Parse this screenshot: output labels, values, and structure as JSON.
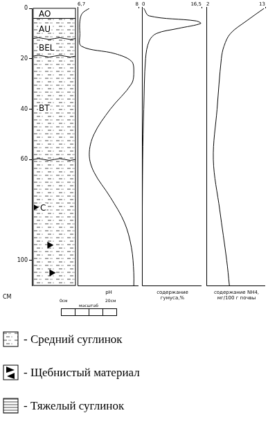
{
  "depth_axis": {
    "label": "CM",
    "ylim": [
      0,
      110
    ],
    "yticks": [
      0,
      20,
      40,
      60,
      100
    ]
  },
  "horizons": [
    {
      "label": "AO",
      "top": 0,
      "bottom": 4
    },
    {
      "label": "AU",
      "top": 4,
      "bottom": 12
    },
    {
      "label": "BEL",
      "top": 12,
      "bottom": 19
    },
    {
      "label": "BT",
      "top": 19,
      "bottom": 60
    },
    {
      "label": "C",
      "top": 60,
      "bottom": 110
    }
  ],
  "chart_data": [
    {
      "type": "line",
      "x_label": "pH",
      "xlim": [
        6.7,
        8
      ],
      "xticks": [
        {
          "value": 6.7,
          "label": "6,7"
        },
        8
      ],
      "x": [
        6.95,
        6.8,
        6.75,
        6.75,
        6.78,
        7.5,
        7.85,
        7.9,
        7.85,
        7.4,
        7.05,
        6.95,
        7.05,
        7.4,
        7.7,
        7.85,
        7.9,
        7.9
      ],
      "y": [
        0,
        2,
        5,
        10,
        15,
        18,
        21,
        25,
        30,
        40,
        50,
        58,
        65,
        75,
        85,
        95,
        105,
        110
      ],
      "color": "#000000",
      "grid": false,
      "tick_labels": "x"
    },
    {
      "type": "line",
      "x_label": "содержание гумуса,%",
      "xlim": [
        0,
        16.5
      ],
      "xticks": [
        0,
        {
          "value": 16.5,
          "label": "16,5"
        }
      ],
      "x": [
        0.5,
        2,
        15,
        16.3,
        10,
        4,
        2,
        1,
        0.5,
        0.2,
        0
      ],
      "y": [
        0,
        3,
        5,
        6,
        8,
        10,
        13,
        20,
        40,
        60,
        110
      ],
      "color": "#000000",
      "grid": false,
      "tick_labels": "x"
    },
    {
      "type": "line",
      "x_label": "содержание NH4, мг/100 г почвы",
      "xlim": [
        2,
        13
      ],
      "xticks": [
        2,
        13
      ],
      "x": [
        12.8,
        9.5,
        6.5,
        5.3,
        4.8,
        4,
        3.3,
        4.5,
        5.8,
        6.3
      ],
      "y": [
        0,
        5,
        10,
        15,
        20,
        40,
        60,
        80,
        100,
        110
      ],
      "color": "#000000",
      "grid": false,
      "tick_labels": "x"
    }
  ],
  "scale_bar": {
    "title": "масштаб",
    "labels": [
      "0см",
      "20см"
    ]
  },
  "legend_items": [
    "- Средний суглинок",
    "- Щебнистый материал",
    "- Тяжелый суглинок"
  ]
}
